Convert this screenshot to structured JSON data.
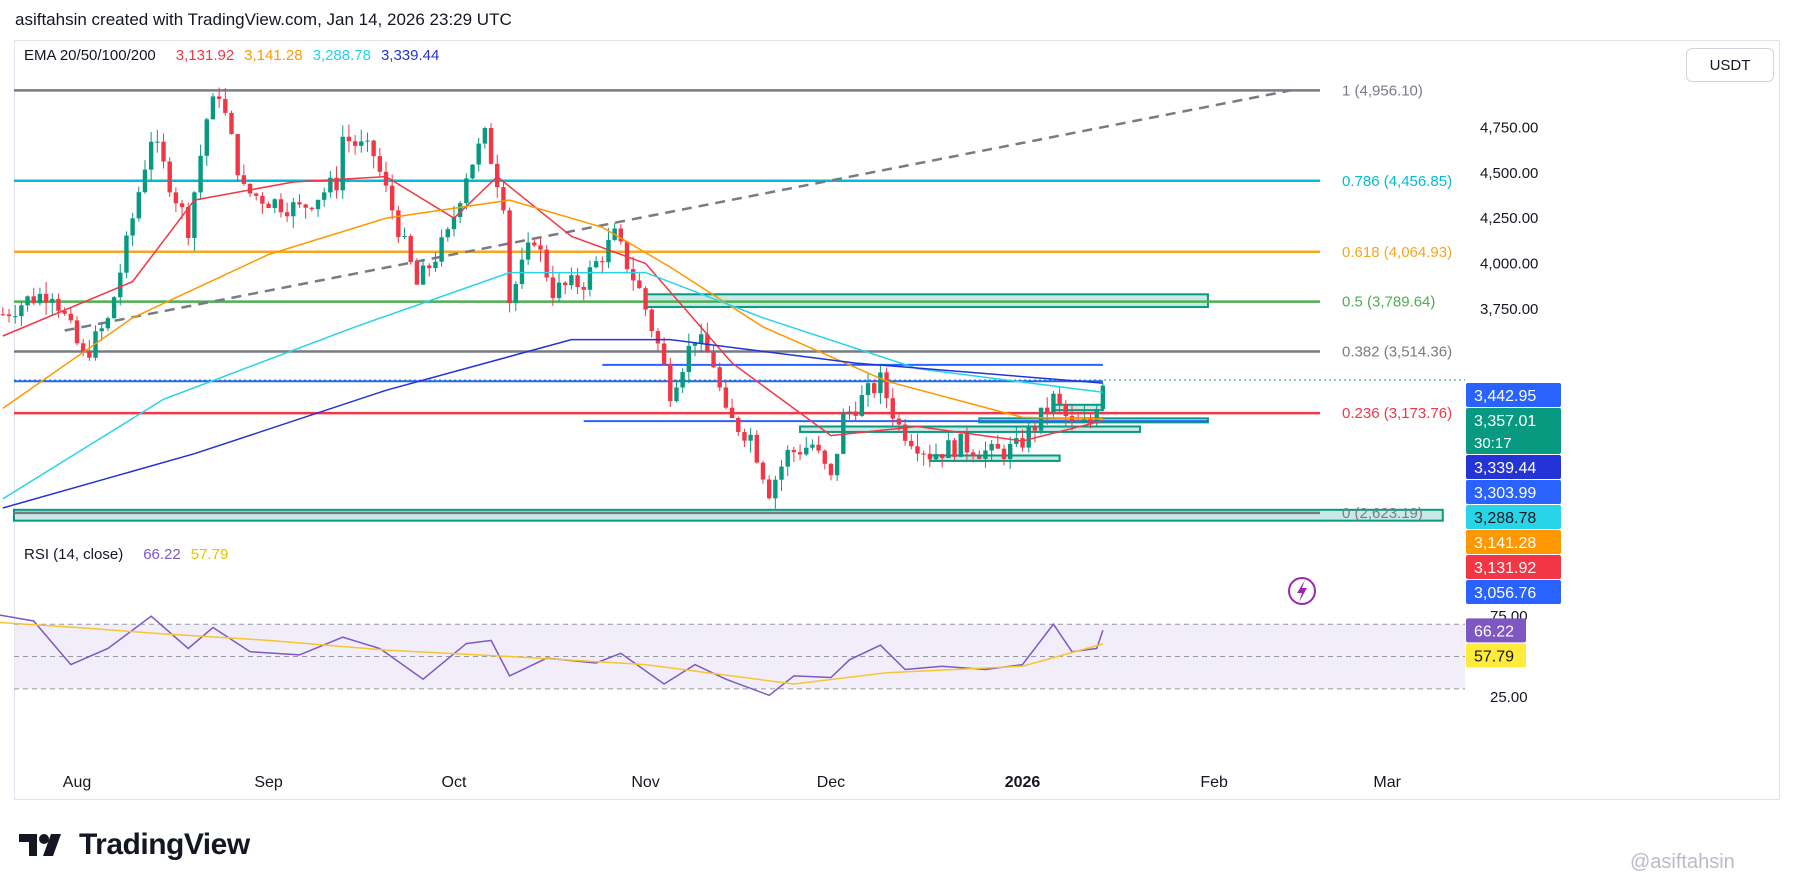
{
  "header": {
    "text": "asiftahsin created with TradingView.com, Jan 14, 2026 23:29 UTC"
  },
  "currency_button": {
    "label": "USDT"
  },
  "ema_legend": {
    "title": "EMA 20/50/100/200",
    "values": [
      {
        "text": "3,131.92",
        "color": "#f23645"
      },
      {
        "text": "3,141.28",
        "color": "#ff9800"
      },
      {
        "text": "3,288.78",
        "color": "#27d4e8"
      },
      {
        "text": "3,339.44",
        "color": "#2433d6"
      }
    ]
  },
  "rsi_legend": {
    "title": "RSI (14, close)",
    "values": [
      {
        "text": "66.22",
        "color": "#7e57c2"
      },
      {
        "text": "57.79",
        "color": "#e6c200"
      }
    ]
  },
  "footer": {
    "logo": "TradingView",
    "watermark": "@asiftahsin"
  },
  "colors": {
    "up": "#089981",
    "down": "#f23645",
    "zone_fill": "#b2dfdb",
    "zone_border": "#089981"
  },
  "chart_data": {
    "type": "candlestick",
    "title": "",
    "ylim": [
      2650,
      5050
    ],
    "y_ticks": [
      3750,
      4000,
      4250,
      4500,
      4750
    ],
    "y_tick_labels": [
      "3,750.00",
      "4,000.00",
      "4,250.00",
      "4,500.00",
      "4,750.00"
    ],
    "x_tick_labels": [
      {
        "label": "Aug",
        "date": "2025-08-01"
      },
      {
        "label": "Sep",
        "date": "2025-09-01"
      },
      {
        "label": "Oct",
        "date": "2025-10-01"
      },
      {
        "label": "Nov",
        "date": "2025-11-01"
      },
      {
        "label": "Dec",
        "date": "2025-12-01"
      },
      {
        "label": "2026",
        "date": "2026-01-01"
      },
      {
        "label": "Feb",
        "date": "2026-02-01"
      },
      {
        "label": "Mar",
        "date": "2026-03-01"
      }
    ],
    "price_path": [
      {
        "date": "2025-07-20",
        "close": 3720
      },
      {
        "date": "2025-07-24",
        "close": 3800
      },
      {
        "date": "2025-07-28",
        "close": 3850
      },
      {
        "date": "2025-08-02",
        "close": 3480
      },
      {
        "date": "2025-08-06",
        "close": 3680
      },
      {
        "date": "2025-08-09",
        "close": 4100
      },
      {
        "date": "2025-08-13",
        "close": 4700
      },
      {
        "date": "2025-08-16",
        "close": 4450
      },
      {
        "date": "2025-08-19",
        "close": 4200
      },
      {
        "date": "2025-08-22",
        "close": 4800
      },
      {
        "date": "2025-08-24",
        "close": 4950
      },
      {
        "date": "2025-08-28",
        "close": 4400
      },
      {
        "date": "2025-09-01",
        "close": 4350
      },
      {
        "date": "2025-09-06",
        "close": 4300
      },
      {
        "date": "2025-09-12",
        "close": 4450
      },
      {
        "date": "2025-09-13",
        "close": 4700
      },
      {
        "date": "2025-09-18",
        "close": 4600
      },
      {
        "date": "2025-09-22",
        "close": 4200
      },
      {
        "date": "2025-09-25",
        "close": 3880
      },
      {
        "date": "2025-09-30",
        "close": 4150
      },
      {
        "date": "2025-10-03",
        "close": 4500
      },
      {
        "date": "2025-10-06",
        "close": 4700
      },
      {
        "date": "2025-10-09",
        "close": 4350
      },
      {
        "date": "2025-10-10",
        "close": 3800
      },
      {
        "date": "2025-10-14",
        "close": 4150
      },
      {
        "date": "2025-10-17",
        "close": 3850
      },
      {
        "date": "2025-10-22",
        "close": 3900
      },
      {
        "date": "2025-10-27",
        "close": 4150
      },
      {
        "date": "2025-10-31",
        "close": 3850
      },
      {
        "date": "2025-11-03",
        "close": 3550
      },
      {
        "date": "2025-11-05",
        "close": 3300
      },
      {
        "date": "2025-11-09",
        "close": 3600
      },
      {
        "date": "2025-11-12",
        "close": 3450
      },
      {
        "date": "2025-11-14",
        "close": 3150
      },
      {
        "date": "2025-11-18",
        "close": 3050
      },
      {
        "date": "2025-11-21",
        "close": 2750
      },
      {
        "date": "2025-11-24",
        "close": 2950
      },
      {
        "date": "2025-11-28",
        "close": 3000
      },
      {
        "date": "2025-12-01",
        "close": 2800
      },
      {
        "date": "2025-12-03",
        "close": 3150
      },
      {
        "date": "2025-12-09",
        "close": 3350
      },
      {
        "date": "2025-12-12",
        "close": 3100
      },
      {
        "date": "2025-12-17",
        "close": 2950
      },
      {
        "date": "2025-12-22",
        "close": 3000
      },
      {
        "date": "2025-12-27",
        "close": 2950
      },
      {
        "date": "2025-12-31",
        "close": 2980
      },
      {
        "date": "2026-01-04",
        "close": 3150
      },
      {
        "date": "2026-01-06",
        "close": 3250
      },
      {
        "date": "2026-01-09",
        "close": 3100
      },
      {
        "date": "2026-01-12",
        "close": 3120
      },
      {
        "date": "2026-01-14",
        "close": 3357
      }
    ],
    "ema_series": [
      {
        "name": "EMA 20",
        "color": "#f23645",
        "points": [
          {
            "date": "2025-07-20",
            "v": 3600
          },
          {
            "date": "2025-08-10",
            "v": 3900
          },
          {
            "date": "2025-08-20",
            "v": 4350
          },
          {
            "date": "2025-09-05",
            "v": 4450
          },
          {
            "date": "2025-09-20",
            "v": 4480
          },
          {
            "date": "2025-10-01",
            "v": 4250
          },
          {
            "date": "2025-10-08",
            "v": 4480
          },
          {
            "date": "2025-10-20",
            "v": 4150
          },
          {
            "date": "2025-11-01",
            "v": 4000
          },
          {
            "date": "2025-11-15",
            "v": 3450
          },
          {
            "date": "2025-12-01",
            "v": 3050
          },
          {
            "date": "2025-12-15",
            "v": 3100
          },
          {
            "date": "2026-01-01",
            "v": 3020
          },
          {
            "date": "2026-01-14",
            "v": 3131.92
          }
        ]
      },
      {
        "name": "EMA 50",
        "color": "#ff9800",
        "points": [
          {
            "date": "2025-07-20",
            "v": 3200
          },
          {
            "date": "2025-08-10",
            "v": 3700
          },
          {
            "date": "2025-09-01",
            "v": 4050
          },
          {
            "date": "2025-09-20",
            "v": 4250
          },
          {
            "date": "2025-10-10",
            "v": 4350
          },
          {
            "date": "2025-10-25",
            "v": 4200
          },
          {
            "date": "2025-11-05",
            "v": 3980
          },
          {
            "date": "2025-11-20",
            "v": 3650
          },
          {
            "date": "2025-12-10",
            "v": 3350
          },
          {
            "date": "2026-01-01",
            "v": 3150
          },
          {
            "date": "2026-01-14",
            "v": 3141.28
          }
        ]
      },
      {
        "name": "EMA 100",
        "color": "#27d4e8",
        "points": [
          {
            "date": "2025-07-20",
            "v": 2700
          },
          {
            "date": "2025-08-15",
            "v": 3250
          },
          {
            "date": "2025-09-15",
            "v": 3650
          },
          {
            "date": "2025-10-10",
            "v": 3950
          },
          {
            "date": "2025-11-01",
            "v": 3950
          },
          {
            "date": "2025-11-20",
            "v": 3700
          },
          {
            "date": "2025-12-15",
            "v": 3420
          },
          {
            "date": "2026-01-14",
            "v": 3288.78
          }
        ]
      },
      {
        "name": "EMA 200",
        "color": "#2433d6",
        "points": [
          {
            "date": "2025-07-20",
            "v": 2650
          },
          {
            "date": "2025-08-20",
            "v": 2950
          },
          {
            "date": "2025-09-20",
            "v": 3300
          },
          {
            "date": "2025-10-20",
            "v": 3580
          },
          {
            "date": "2025-11-05",
            "v": 3580
          },
          {
            "date": "2025-12-05",
            "v": 3450
          },
          {
            "date": "2026-01-14",
            "v": 3339.44
          }
        ]
      }
    ],
    "fib_levels": [
      {
        "ratio": "1",
        "label": "1 (4,956.10)",
        "price": 4956.1,
        "color": "#787b86"
      },
      {
        "ratio": "0.786",
        "label": "0.786 (4,456.85)",
        "price": 4456.85,
        "color": "#00bcd4"
      },
      {
        "ratio": "0.618",
        "label": "0.618 (4,064.93)",
        "price": 4064.93,
        "color": "#f5a623"
      },
      {
        "ratio": "0.5",
        "label": "0.5 (3,789.64)",
        "price": 3789.64,
        "color": "#4caf50"
      },
      {
        "ratio": "0.382",
        "label": "0.382 (3,514.36)",
        "price": 3514.36,
        "color": "#787b86"
      },
      {
        "ratio": "0.236",
        "label": "0.236 (3,173.76)",
        "price": 3173.76,
        "color": "#f23645"
      },
      {
        "ratio": "0",
        "label": "0 (2,623.19)",
        "price": 2623.19,
        "color": "#787b86"
      }
    ],
    "trendline": {
      "start": {
        "date": "2025-07-30",
        "price": 3630
      },
      "end": {
        "date": "2026-02-14",
        "price": 4960
      }
    },
    "horizontal_lines": [
      {
        "price": 3350,
        "from": "2025-07-16",
        "to": "2026-01-14"
      },
      {
        "price": 3440,
        "from": "2025-10-25",
        "to": "2026-01-14"
      },
      {
        "price": 3130,
        "from": "2025-10-22",
        "to": "2026-01-31"
      }
    ],
    "zones": [
      {
        "from": "2025-11-01",
        "to": "2026-01-31",
        "top": 3830,
        "bottom": 3760
      },
      {
        "from": "2025-11-26",
        "to": "2026-01-20",
        "top": 3100,
        "bottom": 3070
      },
      {
        "from": "2025-12-17",
        "to": "2026-01-07",
        "top": 2940,
        "bottom": 2910
      },
      {
        "from": "2026-01-06",
        "to": "2026-01-14",
        "top": 3220,
        "bottom": 3190
      },
      {
        "from": "2025-12-25",
        "to": "2026-01-31",
        "top": 3145,
        "bottom": 3125
      },
      {
        "from": "2025-07-16",
        "to": "2026-03-10",
        "top": 2640,
        "bottom": 2580
      }
    ],
    "price_scale_labels": [
      {
        "text": "3,442.95",
        "bg": "#2962ff",
        "fg": "#ffffff"
      },
      {
        "text": "3,357.01",
        "bg": "#089981",
        "fg": "#ffffff",
        "sub": "30:17"
      },
      {
        "text": "3,339.44",
        "bg": "#2433d6",
        "fg": "#ffffff"
      },
      {
        "text": "3,303.99",
        "bg": "#2962ff",
        "fg": "#ffffff"
      },
      {
        "text": "3,288.78",
        "bg": "#27d4e8",
        "fg": "#131722"
      },
      {
        "text": "3,141.28",
        "bg": "#ff9800",
        "fg": "#ffffff"
      },
      {
        "text": "3,131.92",
        "bg": "#f23645",
        "fg": "#ffffff"
      },
      {
        "text": "3,056.76",
        "bg": "#2962ff",
        "fg": "#ffffff"
      }
    ],
    "rsi": {
      "ylim": [
        20,
        85
      ],
      "y_ticks": [
        25,
        75
      ],
      "y_tick_labels": [
        "25.00",
        "75.00"
      ],
      "band": [
        30,
        70
      ],
      "value_labels": [
        {
          "text": "66.22",
          "bg": "#7e57c2",
          "fg": "#ffffff"
        },
        {
          "text": "57.79",
          "bg": "#ffeb3b",
          "fg": "#131722"
        }
      ],
      "rsi_points": [
        {
          "date": "2025-07-16",
          "v": 78
        },
        {
          "date": "2025-07-25",
          "v": 72
        },
        {
          "date": "2025-07-31",
          "v": 45
        },
        {
          "date": "2025-08-06",
          "v": 55
        },
        {
          "date": "2025-08-13",
          "v": 75
        },
        {
          "date": "2025-08-19",
          "v": 55
        },
        {
          "date": "2025-08-23",
          "v": 68
        },
        {
          "date": "2025-08-29",
          "v": 53
        },
        {
          "date": "2025-09-06",
          "v": 51
        },
        {
          "date": "2025-09-13",
          "v": 62
        },
        {
          "date": "2025-09-19",
          "v": 55
        },
        {
          "date": "2025-09-26",
          "v": 36
        },
        {
          "date": "2025-10-03",
          "v": 58
        },
        {
          "date": "2025-10-07",
          "v": 60
        },
        {
          "date": "2025-10-10",
          "v": 38
        },
        {
          "date": "2025-10-16",
          "v": 49
        },
        {
          "date": "2025-10-24",
          "v": 46
        },
        {
          "date": "2025-10-28",
          "v": 52
        },
        {
          "date": "2025-11-04",
          "v": 33
        },
        {
          "date": "2025-11-09",
          "v": 45
        },
        {
          "date": "2025-11-14",
          "v": 36
        },
        {
          "date": "2025-11-21",
          "v": 26
        },
        {
          "date": "2025-11-25",
          "v": 38
        },
        {
          "date": "2025-12-01",
          "v": 37
        },
        {
          "date": "2025-12-04",
          "v": 48
        },
        {
          "date": "2025-12-09",
          "v": 57
        },
        {
          "date": "2025-12-13",
          "v": 42
        },
        {
          "date": "2025-12-19",
          "v": 44
        },
        {
          "date": "2025-12-26",
          "v": 42
        },
        {
          "date": "2026-01-01",
          "v": 45
        },
        {
          "date": "2026-01-06",
          "v": 70
        },
        {
          "date": "2026-01-09",
          "v": 53
        },
        {
          "date": "2026-01-13",
          "v": 55
        },
        {
          "date": "2026-01-14",
          "v": 66.22
        }
      ],
      "ma_points": [
        {
          "date": "2025-07-16",
          "v": 72
        },
        {
          "date": "2025-08-01",
          "v": 68
        },
        {
          "date": "2025-08-15",
          "v": 64
        },
        {
          "date": "2025-09-01",
          "v": 60
        },
        {
          "date": "2025-09-20",
          "v": 54
        },
        {
          "date": "2025-10-10",
          "v": 50
        },
        {
          "date": "2025-11-01",
          "v": 45
        },
        {
          "date": "2025-11-25",
          "v": 33
        },
        {
          "date": "2025-12-10",
          "v": 40
        },
        {
          "date": "2026-01-01",
          "v": 44
        },
        {
          "date": "2026-01-14",
          "v": 57.79
        }
      ]
    }
  }
}
